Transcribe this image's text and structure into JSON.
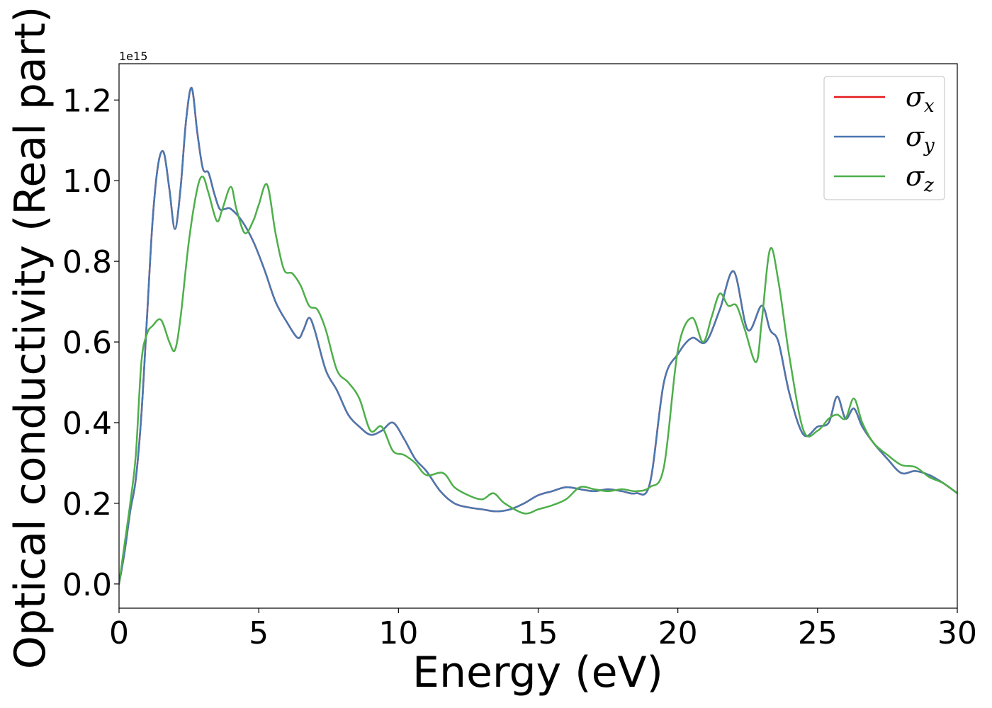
{
  "chart_data": {
    "type": "line",
    "xlabel": "Energy (eV)",
    "ylabel": "Optical conductivity (Real part)",
    "y_offset_label": "1e15",
    "xlim": [
      0,
      30
    ],
    "ylim": [
      -0.06,
      1.29
    ],
    "x_ticks": [
      0,
      5,
      10,
      15,
      20,
      25,
      30
    ],
    "x_tick_labels": [
      "0",
      "5",
      "10",
      "15",
      "20",
      "25",
      "30"
    ],
    "y_ticks": [
      0.0,
      0.2,
      0.4,
      0.6,
      0.8,
      1.0,
      1.2
    ],
    "y_tick_labels": [
      "0.0",
      "0.2",
      "0.4",
      "0.6",
      "0.8",
      "1.0",
      "1.2"
    ],
    "grid": false,
    "legend_position": "top-right",
    "series": [
      {
        "name": "σx",
        "symbol": "σ",
        "subscript": "x",
        "color": "#e41a1c",
        "x": [
          0,
          0.2,
          0.4,
          0.6,
          0.8,
          1.0,
          1.2,
          1.4,
          1.6,
          1.8,
          2.0,
          2.2,
          2.4,
          2.6,
          2.8,
          3.0,
          3.2,
          3.4,
          3.6,
          3.8,
          4.0,
          4.4,
          4.8,
          5.2,
          5.6,
          6.0,
          6.4,
          6.6,
          6.8,
          7.0,
          7.4,
          7.8,
          8.2,
          8.6,
          9.0,
          9.4,
          9.8,
          10.2,
          10.6,
          11.0,
          11.5,
          12.0,
          12.5,
          13.0,
          13.5,
          14.0,
          14.5,
          15.0,
          15.5,
          16.0,
          16.5,
          17.0,
          17.5,
          18.0,
          18.5,
          19.0,
          19.5,
          20.0,
          20.5,
          21.0,
          21.5,
          22.0,
          22.5,
          23.0,
          23.3,
          23.6,
          24.0,
          24.5,
          25.0,
          25.4,
          25.7,
          26.0,
          26.3,
          26.6,
          27.0,
          27.5,
          28.0,
          28.5,
          29.0,
          29.5,
          30.0
        ],
        "y": [
          0.0,
          0.08,
          0.18,
          0.26,
          0.42,
          0.66,
          0.9,
          1.04,
          1.07,
          0.98,
          0.88,
          0.98,
          1.15,
          1.23,
          1.12,
          1.03,
          1.02,
          0.97,
          0.93,
          0.93,
          0.93,
          0.9,
          0.85,
          0.78,
          0.7,
          0.65,
          0.61,
          0.63,
          0.66,
          0.63,
          0.53,
          0.48,
          0.42,
          0.39,
          0.37,
          0.38,
          0.4,
          0.36,
          0.31,
          0.28,
          0.23,
          0.2,
          0.19,
          0.185,
          0.18,
          0.185,
          0.2,
          0.22,
          0.23,
          0.24,
          0.235,
          0.23,
          0.235,
          0.23,
          0.225,
          0.25,
          0.5,
          0.57,
          0.61,
          0.6,
          0.68,
          0.775,
          0.63,
          0.69,
          0.63,
          0.6,
          0.47,
          0.37,
          0.39,
          0.4,
          0.465,
          0.41,
          0.435,
          0.39,
          0.35,
          0.31,
          0.275,
          0.28,
          0.27,
          0.25,
          0.225
        ]
      },
      {
        "name": "σy",
        "symbol": "σ",
        "subscript": "y",
        "color": "#4a78b0",
        "x": [
          0,
          0.2,
          0.4,
          0.6,
          0.8,
          1.0,
          1.2,
          1.4,
          1.6,
          1.8,
          2.0,
          2.2,
          2.4,
          2.6,
          2.8,
          3.0,
          3.2,
          3.4,
          3.6,
          3.8,
          4.0,
          4.4,
          4.8,
          5.2,
          5.6,
          6.0,
          6.4,
          6.6,
          6.8,
          7.0,
          7.4,
          7.8,
          8.2,
          8.6,
          9.0,
          9.4,
          9.8,
          10.2,
          10.6,
          11.0,
          11.5,
          12.0,
          12.5,
          13.0,
          13.5,
          14.0,
          14.5,
          15.0,
          15.5,
          16.0,
          16.5,
          17.0,
          17.5,
          18.0,
          18.5,
          19.0,
          19.5,
          20.0,
          20.5,
          21.0,
          21.5,
          22.0,
          22.5,
          23.0,
          23.3,
          23.6,
          24.0,
          24.5,
          25.0,
          25.4,
          25.7,
          26.0,
          26.3,
          26.6,
          27.0,
          27.5,
          28.0,
          28.5,
          29.0,
          29.5,
          30.0
        ],
        "y": [
          0.0,
          0.08,
          0.18,
          0.26,
          0.42,
          0.66,
          0.9,
          1.04,
          1.07,
          0.98,
          0.88,
          0.98,
          1.15,
          1.23,
          1.12,
          1.03,
          1.02,
          0.97,
          0.93,
          0.93,
          0.93,
          0.9,
          0.85,
          0.78,
          0.7,
          0.65,
          0.61,
          0.63,
          0.66,
          0.63,
          0.53,
          0.48,
          0.42,
          0.39,
          0.37,
          0.38,
          0.4,
          0.36,
          0.31,
          0.28,
          0.23,
          0.2,
          0.19,
          0.185,
          0.18,
          0.185,
          0.2,
          0.22,
          0.23,
          0.24,
          0.235,
          0.23,
          0.235,
          0.23,
          0.225,
          0.25,
          0.5,
          0.57,
          0.61,
          0.6,
          0.68,
          0.775,
          0.63,
          0.69,
          0.63,
          0.6,
          0.47,
          0.37,
          0.39,
          0.4,
          0.465,
          0.41,
          0.435,
          0.39,
          0.35,
          0.31,
          0.275,
          0.28,
          0.27,
          0.25,
          0.225
        ]
      },
      {
        "name": "σz",
        "symbol": "σ",
        "subscript": "z",
        "color": "#4daf4a",
        "x": [
          0,
          0.2,
          0.4,
          0.6,
          0.8,
          1.0,
          1.2,
          1.5,
          1.8,
          2.0,
          2.2,
          2.5,
          2.8,
          3.0,
          3.2,
          3.5,
          3.7,
          4.0,
          4.2,
          4.5,
          4.8,
          5.0,
          5.3,
          5.6,
          5.9,
          6.2,
          6.5,
          6.8,
          7.1,
          7.4,
          7.8,
          8.2,
          8.6,
          9.0,
          9.4,
          9.8,
          10.2,
          10.6,
          11.0,
          11.6,
          12.0,
          12.5,
          13.0,
          13.4,
          13.8,
          14.5,
          15.0,
          15.5,
          16.0,
          16.5,
          17.0,
          17.5,
          18.0,
          18.5,
          19.0,
          19.5,
          20.0,
          20.5,
          20.9,
          21.2,
          21.5,
          21.8,
          22.1,
          22.4,
          22.8,
          23.0,
          23.3,
          23.6,
          24.0,
          24.5,
          25.0,
          25.4,
          25.7,
          26.0,
          26.3,
          26.6,
          27.0,
          27.5,
          28.0,
          28.5,
          29.0,
          29.5,
          30.0
        ],
        "y": [
          0.0,
          0.1,
          0.2,
          0.32,
          0.55,
          0.62,
          0.64,
          0.655,
          0.6,
          0.58,
          0.66,
          0.85,
          0.98,
          1.01,
          0.97,
          0.9,
          0.93,
          0.985,
          0.93,
          0.87,
          0.9,
          0.94,
          0.99,
          0.87,
          0.78,
          0.77,
          0.74,
          0.69,
          0.68,
          0.63,
          0.53,
          0.5,
          0.46,
          0.38,
          0.39,
          0.33,
          0.32,
          0.3,
          0.27,
          0.275,
          0.24,
          0.22,
          0.21,
          0.225,
          0.2,
          0.175,
          0.185,
          0.195,
          0.21,
          0.24,
          0.235,
          0.23,
          0.235,
          0.23,
          0.24,
          0.29,
          0.58,
          0.66,
          0.6,
          0.66,
          0.72,
          0.69,
          0.69,
          0.63,
          0.55,
          0.65,
          0.83,
          0.75,
          0.56,
          0.38,
          0.38,
          0.41,
          0.42,
          0.41,
          0.46,
          0.4,
          0.35,
          0.32,
          0.295,
          0.29,
          0.265,
          0.25,
          0.225
        ]
      }
    ]
  }
}
